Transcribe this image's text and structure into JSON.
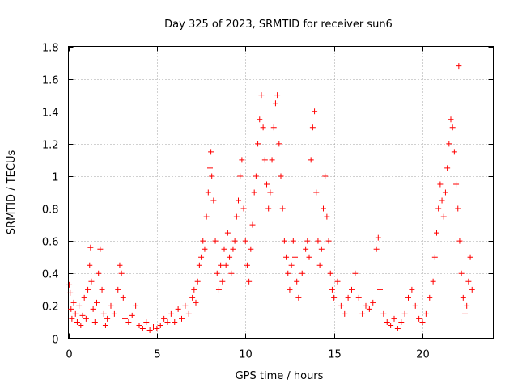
{
  "chart_data": {
    "type": "scatter",
    "title": "Day 325 of 2023, SRMTID for receiver sun6",
    "xlabel": "GPS time / hours",
    "ylabel": "SRMTID / TECUs",
    "xlim": [
      0,
      24
    ],
    "ylim": [
      0,
      1.8
    ],
    "xticks": [
      0,
      5,
      10,
      15,
      20
    ],
    "yticks": [
      0,
      0.2,
      0.4,
      0.6,
      0.8,
      1,
      1.2,
      1.4,
      1.6,
      1.8
    ],
    "grid": true,
    "marker": "+",
    "color": "#ff0000",
    "series": [
      {
        "name": "sun6",
        "points": [
          [
            0.05,
            0.33
          ],
          [
            0.1,
            0.28
          ],
          [
            0.15,
            0.18
          ],
          [
            0.2,
            0.12
          ],
          [
            0.3,
            0.22
          ],
          [
            0.4,
            0.15
          ],
          [
            0.5,
            0.1
          ],
          [
            0.6,
            0.2
          ],
          [
            0.7,
            0.08
          ],
          [
            0.8,
            0.14
          ],
          [
            0.9,
            0.25
          ],
          [
            1.0,
            0.12
          ],
          [
            1.1,
            0.3
          ],
          [
            1.2,
            0.45
          ],
          [
            1.25,
            0.56
          ],
          [
            1.3,
            0.35
          ],
          [
            1.4,
            0.18
          ],
          [
            1.5,
            0.1
          ],
          [
            1.6,
            0.22
          ],
          [
            1.7,
            0.4
          ],
          [
            1.8,
            0.55
          ],
          [
            1.9,
            0.3
          ],
          [
            2.0,
            0.15
          ],
          [
            2.1,
            0.08
          ],
          [
            2.2,
            0.12
          ],
          [
            2.4,
            0.2
          ],
          [
            2.6,
            0.15
          ],
          [
            2.8,
            0.3
          ],
          [
            2.9,
            0.45
          ],
          [
            3.0,
            0.4
          ],
          [
            3.1,
            0.25
          ],
          [
            3.2,
            0.12
          ],
          [
            3.4,
            0.1
          ],
          [
            3.6,
            0.14
          ],
          [
            3.8,
            0.2
          ],
          [
            4.0,
            0.08
          ],
          [
            4.2,
            0.06
          ],
          [
            4.4,
            0.1
          ],
          [
            4.6,
            0.05
          ],
          [
            4.8,
            0.07
          ],
          [
            5.0,
            0.06
          ],
          [
            5.2,
            0.08
          ],
          [
            5.4,
            0.12
          ],
          [
            5.6,
            0.1
          ],
          [
            5.8,
            0.15
          ],
          [
            6.0,
            0.1
          ],
          [
            6.2,
            0.18
          ],
          [
            6.4,
            0.12
          ],
          [
            6.6,
            0.2
          ],
          [
            6.8,
            0.15
          ],
          [
            7.0,
            0.25
          ],
          [
            7.1,
            0.3
          ],
          [
            7.2,
            0.22
          ],
          [
            7.3,
            0.35
          ],
          [
            7.4,
            0.45
          ],
          [
            7.5,
            0.5
          ],
          [
            7.6,
            0.6
          ],
          [
            7.7,
            0.55
          ],
          [
            7.8,
            0.75
          ],
          [
            7.9,
            0.9
          ],
          [
            8.0,
            1.05
          ],
          [
            8.05,
            1.15
          ],
          [
            8.1,
            1.0
          ],
          [
            8.2,
            0.85
          ],
          [
            8.3,
            0.6
          ],
          [
            8.4,
            0.4
          ],
          [
            8.5,
            0.3
          ],
          [
            8.6,
            0.45
          ],
          [
            8.7,
            0.35
          ],
          [
            8.8,
            0.55
          ],
          [
            8.9,
            0.45
          ],
          [
            9.0,
            0.65
          ],
          [
            9.1,
            0.5
          ],
          [
            9.2,
            0.4
          ],
          [
            9.3,
            0.55
          ],
          [
            9.4,
            0.6
          ],
          [
            9.5,
            0.75
          ],
          [
            9.6,
            0.85
          ],
          [
            9.7,
            1.0
          ],
          [
            9.8,
            1.1
          ],
          [
            9.9,
            0.8
          ],
          [
            10.0,
            0.6
          ],
          [
            10.1,
            0.45
          ],
          [
            10.2,
            0.35
          ],
          [
            10.3,
            0.55
          ],
          [
            10.4,
            0.7
          ],
          [
            10.5,
            0.9
          ],
          [
            10.6,
            1.0
          ],
          [
            10.7,
            1.2
          ],
          [
            10.8,
            1.35
          ],
          [
            10.9,
            1.5
          ],
          [
            11.0,
            1.3
          ],
          [
            11.1,
            1.1
          ],
          [
            11.2,
            0.95
          ],
          [
            11.3,
            0.8
          ],
          [
            11.4,
            0.9
          ],
          [
            11.5,
            1.1
          ],
          [
            11.6,
            1.3
          ],
          [
            11.7,
            1.45
          ],
          [
            11.8,
            1.5
          ],
          [
            11.9,
            1.2
          ],
          [
            12.0,
            1.0
          ],
          [
            12.1,
            0.8
          ],
          [
            12.2,
            0.6
          ],
          [
            12.3,
            0.5
          ],
          [
            12.4,
            0.4
          ],
          [
            12.5,
            0.3
          ],
          [
            12.6,
            0.45
          ],
          [
            12.7,
            0.6
          ],
          [
            12.8,
            0.5
          ],
          [
            12.9,
            0.35
          ],
          [
            13.0,
            0.25
          ],
          [
            13.2,
            0.4
          ],
          [
            13.4,
            0.55
          ],
          [
            13.5,
            0.6
          ],
          [
            13.6,
            0.5
          ],
          [
            13.7,
            1.1
          ],
          [
            13.8,
            1.3
          ],
          [
            13.9,
            1.4
          ],
          [
            14.0,
            0.9
          ],
          [
            14.1,
            0.6
          ],
          [
            14.2,
            0.45
          ],
          [
            14.3,
            0.55
          ],
          [
            14.4,
            0.8
          ],
          [
            14.5,
            1.0
          ],
          [
            14.6,
            0.75
          ],
          [
            14.7,
            0.6
          ],
          [
            14.8,
            0.4
          ],
          [
            14.9,
            0.3
          ],
          [
            15.0,
            0.25
          ],
          [
            15.2,
            0.35
          ],
          [
            15.4,
            0.2
          ],
          [
            15.6,
            0.15
          ],
          [
            15.8,
            0.25
          ],
          [
            16.0,
            0.3
          ],
          [
            16.2,
            0.4
          ],
          [
            16.4,
            0.25
          ],
          [
            16.6,
            0.15
          ],
          [
            16.8,
            0.2
          ],
          [
            17.0,
            0.18
          ],
          [
            17.2,
            0.22
          ],
          [
            17.4,
            0.55
          ],
          [
            17.5,
            0.62
          ],
          [
            17.6,
            0.3
          ],
          [
            17.8,
            0.15
          ],
          [
            18.0,
            0.1
          ],
          [
            18.2,
            0.08
          ],
          [
            18.4,
            0.12
          ],
          [
            18.6,
            0.06
          ],
          [
            18.8,
            0.1
          ],
          [
            19.0,
            0.15
          ],
          [
            19.2,
            0.25
          ],
          [
            19.4,
            0.3
          ],
          [
            19.6,
            0.2
          ],
          [
            19.8,
            0.12
          ],
          [
            20.0,
            0.1
          ],
          [
            20.2,
            0.15
          ],
          [
            20.4,
            0.25
          ],
          [
            20.6,
            0.35
          ],
          [
            20.7,
            0.5
          ],
          [
            20.8,
            0.65
          ],
          [
            20.9,
            0.8
          ],
          [
            21.0,
            0.95
          ],
          [
            21.1,
            0.85
          ],
          [
            21.2,
            0.75
          ],
          [
            21.3,
            0.9
          ],
          [
            21.4,
            1.05
          ],
          [
            21.5,
            1.2
          ],
          [
            21.6,
            1.35
          ],
          [
            21.7,
            1.3
          ],
          [
            21.8,
            1.15
          ],
          [
            21.9,
            0.95
          ],
          [
            22.0,
            0.8
          ],
          [
            22.05,
            1.68
          ],
          [
            22.1,
            0.6
          ],
          [
            22.2,
            0.4
          ],
          [
            22.3,
            0.25
          ],
          [
            22.4,
            0.15
          ],
          [
            22.5,
            0.2
          ],
          [
            22.6,
            0.35
          ],
          [
            22.7,
            0.5
          ],
          [
            22.8,
            0.3
          ]
        ]
      }
    ]
  }
}
